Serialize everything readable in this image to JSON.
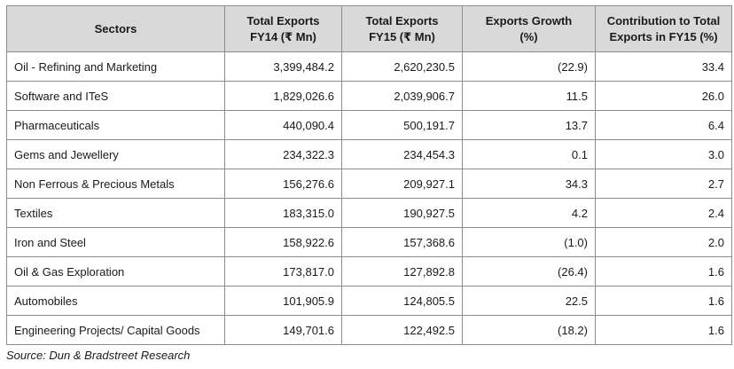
{
  "table": {
    "headers": {
      "sectors": "Sectors",
      "fy14": [
        "Total Exports",
        "FY14 (₹ Mn)"
      ],
      "fy15": [
        "Total Exports",
        "FY15 (₹ Mn)"
      ],
      "growth": [
        "Exports Growth",
        "(%)"
      ],
      "contribution": [
        "Contribution to Total",
        "Exports in FY15 (%)"
      ]
    },
    "rows": [
      {
        "sector": "Oil - Refining and Marketing",
        "fy14": "3,399,484.2",
        "fy15": "2,620,230.5",
        "growth": "(22.9)",
        "contribution": "33.4"
      },
      {
        "sector": "Software and ITeS",
        "fy14": "1,829,026.6",
        "fy15": "2,039,906.7",
        "growth": "11.5",
        "contribution": "26.0"
      },
      {
        "sector": "Pharmaceuticals",
        "fy14": "440,090.4",
        "fy15": "500,191.7",
        "growth": "13.7",
        "contribution": "6.4"
      },
      {
        "sector": "Gems and Jewellery",
        "fy14": "234,322.3",
        "fy15": "234,454.3",
        "growth": "0.1",
        "contribution": "3.0"
      },
      {
        "sector": "Non Ferrous & Precious Metals",
        "fy14": "156,276.6",
        "fy15": "209,927.1",
        "growth": "34.3",
        "contribution": "2.7"
      },
      {
        "sector": "Textiles",
        "fy14": "183,315.0",
        "fy15": "190,927.5",
        "growth": "4.2",
        "contribution": "2.4"
      },
      {
        "sector": "Iron and Steel",
        "fy14": "158,922.6",
        "fy15": "157,368.6",
        "growth": "(1.0)",
        "contribution": "2.0"
      },
      {
        "sector": "Oil & Gas Exploration",
        "fy14": "173,817.0",
        "fy15": "127,892.8",
        "growth": "(26.4)",
        "contribution": "1.6"
      },
      {
        "sector": "Automobiles",
        "fy14": "101,905.9",
        "fy15": "124,805.5",
        "growth": "22.5",
        "contribution": "1.6"
      },
      {
        "sector": "Engineering Projects/ Capital Goods",
        "fy14": "149,701.6",
        "fy15": "122,492.5",
        "growth": "(18.2)",
        "contribution": "1.6"
      }
    ]
  },
  "source": "Source: Dun & Bradstreet Research",
  "colors": {
    "header_bg": "#d9d9d9",
    "border": "#8c8c8c",
    "text": "#1a1a1a"
  }
}
